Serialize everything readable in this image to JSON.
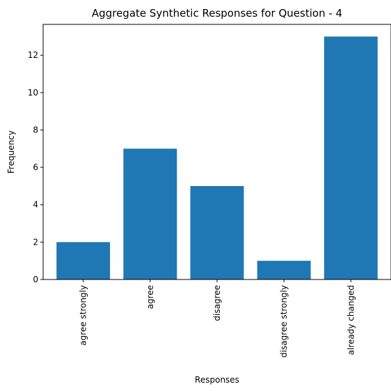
{
  "chart_data": {
    "type": "bar",
    "title": "Aggregate Synthetic Responses for Question - 4",
    "xlabel": "Responses",
    "ylabel": "Frequency",
    "categories": [
      "agree strongly",
      "agree",
      "disagree",
      "disagree strongly",
      "already changed"
    ],
    "values": [
      2,
      7,
      5,
      1,
      13
    ],
    "ylim": [
      0,
      13.65
    ],
    "yticks": [
      0,
      2,
      4,
      6,
      8,
      10,
      12
    ],
    "bar_color": "#1f77b4",
    "grid": false,
    "legend": "none"
  }
}
